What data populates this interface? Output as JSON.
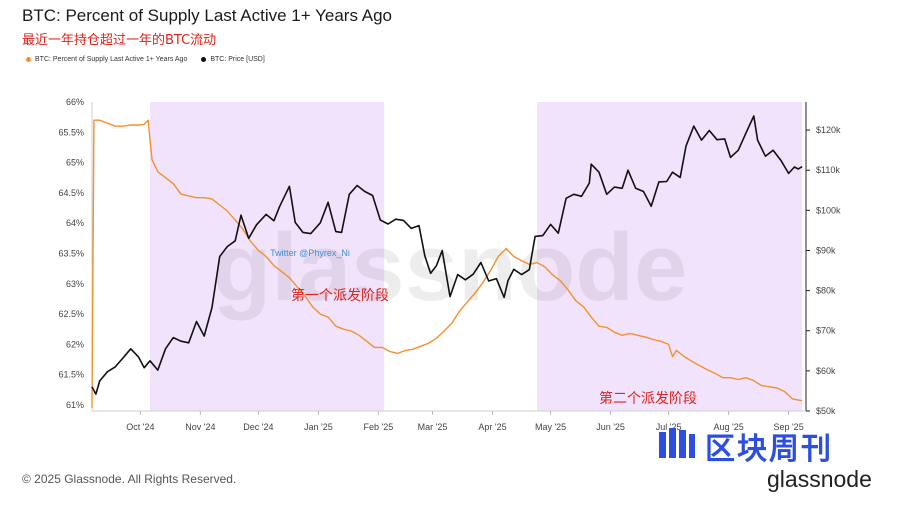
{
  "title": "BTC: Percent of Supply Last Active 1+ Years Ago",
  "subtitle": "最近一年持仓超过一年的BTC流动",
  "legend": {
    "supply_label": "BTC: Percent of Supply Last Active 1+ Years Ago",
    "price_label": "BTC: Price [USD]"
  },
  "copyright": "© 2025 Glassnode. All Rights Reserved.",
  "brand": {
    "cn": "区块周刊",
    "en": "glassnode"
  },
  "watermark": "glassnode",
  "colors": {
    "supply": "#f2912f",
    "price": "#111111",
    "highlight": "#f1e3fc",
    "annotation": "#e0231c",
    "twitter": "#3e8fd8",
    "brand_blue": "#2c4fe0"
  },
  "chart_data": {
    "type": "line",
    "left_axis": {
      "ticks": [
        "61%",
        "61.5%",
        "62%",
        "62.5%",
        "63%",
        "63.5%",
        "64%",
        "64.5%",
        "65%",
        "65.5%",
        "66%"
      ],
      "tick_values": [
        61,
        61.5,
        62,
        62.5,
        63,
        63.5,
        64,
        64.5,
        65,
        65.5,
        66
      ],
      "range": [
        60.9,
        66
      ]
    },
    "right_axis": {
      "ticks": [
        "$50k",
        "$60k",
        "$70k",
        "$80k",
        "$90k",
        "$100k",
        "$110k",
        "$120k"
      ],
      "tick_values": [
        50000,
        60000,
        70000,
        80000,
        90000,
        100000,
        110000,
        120000
      ],
      "range": [
        50000,
        127000
      ]
    },
    "x_axis": {
      "ticks": [
        "Oct '24",
        "Nov '24",
        "Dec '24",
        "Jan '25",
        "Feb '25",
        "Mar '25",
        "Apr '25",
        "May '25",
        "Jun '25",
        "Jul '25",
        "Aug '25",
        "Sep '25"
      ],
      "tick_dates": [
        "2024-10-01",
        "2024-11-01",
        "2024-12-01",
        "2025-01-01",
        "2025-02-01",
        "2025-03-01",
        "2025-04-01",
        "2025-05-01",
        "2025-06-01",
        "2025-07-01",
        "2025-08-01",
        "2025-09-01"
      ],
      "range": [
        "2024-09-06",
        "2025-09-10"
      ]
    },
    "regions": [
      {
        "start": "2024-10-06",
        "end": "2025-02-04",
        "label": "第一个派发阶段"
      },
      {
        "start": "2025-04-24",
        "end": "2025-09-08",
        "label": "第二个派发阶段"
      }
    ],
    "annotations": [
      {
        "text": "Twitter @Phyrex_Ni"
      }
    ],
    "series": [
      {
        "name": "BTC: Percent of Supply Last Active 1+ Years Ago",
        "axis": "left",
        "points": [
          [
            "2024-09-06",
            60.95
          ],
          [
            "2024-09-07",
            65.7
          ],
          [
            "2024-09-10",
            65.7
          ],
          [
            "2024-09-14",
            65.65
          ],
          [
            "2024-09-18",
            65.6
          ],
          [
            "2024-09-22",
            65.6
          ],
          [
            "2024-09-26",
            65.62
          ],
          [
            "2024-09-30",
            65.62
          ],
          [
            "2024-10-03",
            65.63
          ],
          [
            "2024-10-05",
            65.7
          ],
          [
            "2024-10-07",
            65.05
          ],
          [
            "2024-10-10",
            64.85
          ],
          [
            "2024-10-14",
            64.75
          ],
          [
            "2024-10-18",
            64.65
          ],
          [
            "2024-10-22",
            64.48
          ],
          [
            "2024-10-26",
            64.45
          ],
          [
            "2024-10-30",
            64.42
          ],
          [
            "2024-11-03",
            64.42
          ],
          [
            "2024-11-07",
            64.4
          ],
          [
            "2024-11-11",
            64.3
          ],
          [
            "2024-11-15",
            64.2
          ],
          [
            "2024-11-19",
            64.05
          ],
          [
            "2024-11-23",
            63.9
          ],
          [
            "2024-11-27",
            63.7
          ],
          [
            "2024-12-01",
            63.55
          ],
          [
            "2024-12-05",
            63.45
          ],
          [
            "2024-12-09",
            63.3
          ],
          [
            "2024-12-13",
            63.2
          ],
          [
            "2024-12-17",
            63.1
          ],
          [
            "2024-12-21",
            62.95
          ],
          [
            "2024-12-25",
            62.8
          ],
          [
            "2024-12-29",
            62.62
          ],
          [
            "2025-01-02",
            62.5
          ],
          [
            "2025-01-06",
            62.45
          ],
          [
            "2025-01-10",
            62.3
          ],
          [
            "2025-01-14",
            62.25
          ],
          [
            "2025-01-18",
            62.22
          ],
          [
            "2025-01-22",
            62.15
          ],
          [
            "2025-01-26",
            62.05
          ],
          [
            "2025-01-30",
            61.95
          ],
          [
            "2025-02-03",
            61.95
          ],
          [
            "2025-02-07",
            61.88
          ],
          [
            "2025-02-11",
            61.85
          ],
          [
            "2025-02-15",
            61.9
          ],
          [
            "2025-02-19",
            61.92
          ],
          [
            "2025-02-23",
            61.97
          ],
          [
            "2025-02-27",
            62.02
          ],
          [
            "2025-03-03",
            62.1
          ],
          [
            "2025-03-07",
            62.22
          ],
          [
            "2025-03-11",
            62.35
          ],
          [
            "2025-03-15",
            62.55
          ],
          [
            "2025-03-19",
            62.7
          ],
          [
            "2025-03-23",
            62.85
          ],
          [
            "2025-03-27",
            63.02
          ],
          [
            "2025-03-31",
            63.22
          ],
          [
            "2025-04-04",
            63.45
          ],
          [
            "2025-04-08",
            63.58
          ],
          [
            "2025-04-12",
            63.45
          ],
          [
            "2025-04-16",
            63.38
          ],
          [
            "2025-04-20",
            63.32
          ],
          [
            "2025-04-24",
            63.35
          ],
          [
            "2025-04-28",
            63.28
          ],
          [
            "2025-05-02",
            63.15
          ],
          [
            "2025-05-06",
            63.05
          ],
          [
            "2025-05-10",
            62.9
          ],
          [
            "2025-05-14",
            62.72
          ],
          [
            "2025-05-18",
            62.62
          ],
          [
            "2025-05-22",
            62.45
          ],
          [
            "2025-05-26",
            62.3
          ],
          [
            "2025-05-30",
            62.28
          ],
          [
            "2025-06-03",
            62.2
          ],
          [
            "2025-06-07",
            62.15
          ],
          [
            "2025-06-11",
            62.18
          ],
          [
            "2025-06-15",
            62.15
          ],
          [
            "2025-06-19",
            62.12
          ],
          [
            "2025-06-23",
            62.08
          ],
          [
            "2025-06-27",
            62.05
          ],
          [
            "2025-07-01",
            62.0
          ],
          [
            "2025-07-03",
            61.8
          ],
          [
            "2025-07-05",
            61.9
          ],
          [
            "2025-07-09",
            61.8
          ],
          [
            "2025-07-13",
            61.72
          ],
          [
            "2025-07-17",
            61.65
          ],
          [
            "2025-07-21",
            61.58
          ],
          [
            "2025-07-25",
            61.52
          ],
          [
            "2025-07-29",
            61.45
          ],
          [
            "2025-08-02",
            61.45
          ],
          [
            "2025-08-06",
            61.42
          ],
          [
            "2025-08-10",
            61.45
          ],
          [
            "2025-08-14",
            61.4
          ],
          [
            "2025-08-18",
            61.32
          ],
          [
            "2025-08-22",
            61.3
          ],
          [
            "2025-08-26",
            61.28
          ],
          [
            "2025-08-30",
            61.22
          ],
          [
            "2025-09-03",
            61.1
          ],
          [
            "2025-09-08",
            61.07
          ]
        ]
      },
      {
        "name": "BTC: Price [USD]",
        "axis": "right",
        "points": [
          [
            "2024-09-06",
            56000
          ],
          [
            "2024-09-08",
            54200
          ],
          [
            "2024-09-10",
            57500
          ],
          [
            "2024-09-14",
            59800
          ],
          [
            "2024-09-18",
            61000
          ],
          [
            "2024-09-22",
            63200
          ],
          [
            "2024-09-26",
            65500
          ],
          [
            "2024-09-30",
            63500
          ],
          [
            "2024-10-03",
            60800
          ],
          [
            "2024-10-06",
            62500
          ],
          [
            "2024-10-10",
            60200
          ],
          [
            "2024-10-14",
            65500
          ],
          [
            "2024-10-18",
            68300
          ],
          [
            "2024-10-22",
            67400
          ],
          [
            "2024-10-26",
            67000
          ],
          [
            "2024-10-30",
            72300
          ],
          [
            "2024-11-03",
            68700
          ],
          [
            "2024-11-07",
            75800
          ],
          [
            "2024-11-11",
            88500
          ],
          [
            "2024-11-15",
            91000
          ],
          [
            "2024-11-19",
            92400
          ],
          [
            "2024-11-22",
            98800
          ],
          [
            "2024-11-26",
            93000
          ],
          [
            "2024-11-30",
            96400
          ],
          [
            "2024-12-05",
            99000
          ],
          [
            "2024-12-09",
            97400
          ],
          [
            "2024-12-12",
            101000
          ],
          [
            "2024-12-17",
            106000
          ],
          [
            "2024-12-20",
            97000
          ],
          [
            "2024-12-24",
            94500
          ],
          [
            "2024-12-28",
            94200
          ],
          [
            "2025-01-02",
            96900
          ],
          [
            "2025-01-06",
            102000
          ],
          [
            "2025-01-10",
            94700
          ],
          [
            "2025-01-13",
            94500
          ],
          [
            "2025-01-17",
            104000
          ],
          [
            "2025-01-21",
            106200
          ],
          [
            "2025-01-25",
            104700
          ],
          [
            "2025-01-29",
            103700
          ],
          [
            "2025-02-02",
            97600
          ],
          [
            "2025-02-06",
            96600
          ],
          [
            "2025-02-10",
            97800
          ],
          [
            "2025-02-14",
            97500
          ],
          [
            "2025-02-18",
            95500
          ],
          [
            "2025-02-22",
            96200
          ],
          [
            "2025-02-25",
            88700
          ],
          [
            "2025-02-28",
            84300
          ],
          [
            "2025-03-03",
            86200
          ],
          [
            "2025-03-06",
            90000
          ],
          [
            "2025-03-10",
            78500
          ],
          [
            "2025-03-14",
            84000
          ],
          [
            "2025-03-18",
            82700
          ],
          [
            "2025-03-22",
            84100
          ],
          [
            "2025-03-26",
            87000
          ],
          [
            "2025-03-30",
            82400
          ],
          [
            "2025-04-03",
            83000
          ],
          [
            "2025-04-07",
            78300
          ],
          [
            "2025-04-09",
            82500
          ],
          [
            "2025-04-12",
            85300
          ],
          [
            "2025-04-16",
            84000
          ],
          [
            "2025-04-20",
            85200
          ],
          [
            "2025-04-23",
            93500
          ],
          [
            "2025-04-27",
            93700
          ],
          [
            "2025-05-01",
            96500
          ],
          [
            "2025-05-05",
            94300
          ],
          [
            "2025-05-09",
            103000
          ],
          [
            "2025-05-13",
            104000
          ],
          [
            "2025-05-17",
            103500
          ],
          [
            "2025-05-21",
            106800
          ],
          [
            "2025-05-22",
            111500
          ],
          [
            "2025-05-26",
            109500
          ],
          [
            "2025-05-30",
            104000
          ],
          [
            "2025-06-03",
            105800
          ],
          [
            "2025-06-07",
            105500
          ],
          [
            "2025-06-10",
            110000
          ],
          [
            "2025-06-14",
            105500
          ],
          [
            "2025-06-18",
            104700
          ],
          [
            "2025-06-22",
            101000
          ],
          [
            "2025-06-26",
            107100
          ],
          [
            "2025-06-30",
            107200
          ],
          [
            "2025-07-03",
            109500
          ],
          [
            "2025-07-07",
            108200
          ],
          [
            "2025-07-10",
            116000
          ],
          [
            "2025-07-14",
            121000
          ],
          [
            "2025-07-18",
            117500
          ],
          [
            "2025-07-22",
            119900
          ],
          [
            "2025-07-26",
            117600
          ],
          [
            "2025-07-30",
            117800
          ],
          [
            "2025-08-02",
            113200
          ],
          [
            "2025-08-06",
            115000
          ],
          [
            "2025-08-10",
            119300
          ],
          [
            "2025-08-14",
            123500
          ],
          [
            "2025-08-16",
            117500
          ],
          [
            "2025-08-20",
            113500
          ],
          [
            "2025-08-24",
            115000
          ],
          [
            "2025-08-28",
            112500
          ],
          [
            "2025-09-01",
            109200
          ],
          [
            "2025-09-04",
            110800
          ],
          [
            "2025-09-06",
            110300
          ],
          [
            "2025-09-08",
            110900
          ]
        ]
      }
    ]
  }
}
